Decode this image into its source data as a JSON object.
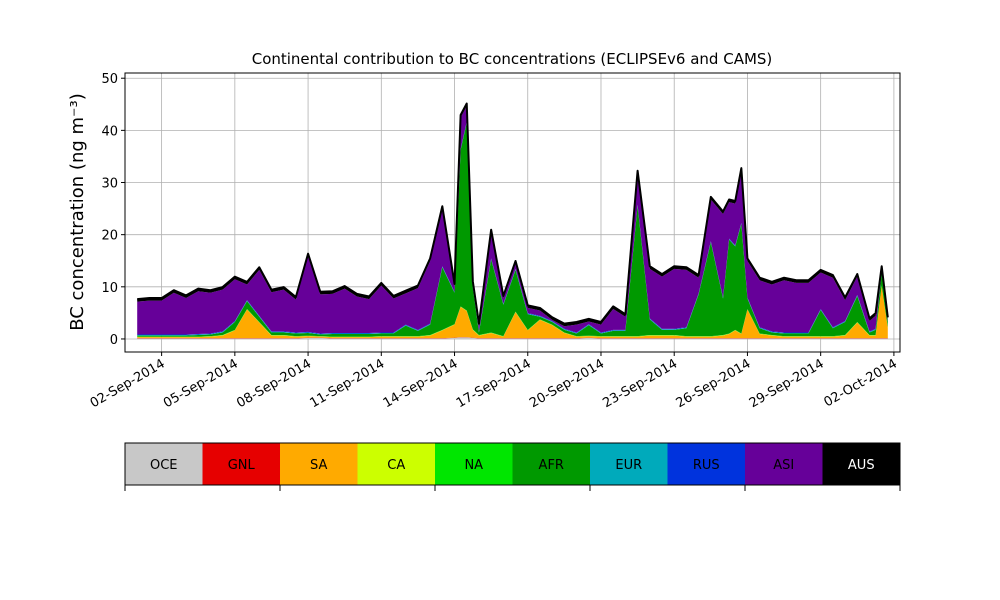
{
  "chart_data": {
    "type": "area",
    "stacked": true,
    "title": "Continental contribution to BC concentrations (ECLIPSEv6 and CAMS)",
    "ylabel": "BC concentration (ng m⁻³)",
    "ylim": [
      -2.5,
      51
    ],
    "yticks": [
      0,
      10,
      20,
      30,
      40,
      50
    ],
    "xlim": [
      "2014-08-31T12:00",
      "2014-10-02T06:00"
    ],
    "xticks": [
      "2014-09-02",
      "2014-09-05",
      "2014-09-08",
      "2014-09-11",
      "2014-09-14",
      "2014-09-17",
      "2014-09-20",
      "2014-09-23",
      "2014-09-26",
      "2014-09-29",
      "2014-10-02"
    ],
    "xticklabels": [
      "02-Sep-2014",
      "05-Sep-2014",
      "08-Sep-2014",
      "11-Sep-2014",
      "14-Sep-2014",
      "17-Sep-2014",
      "20-Sep-2014",
      "23-Sep-2014",
      "26-Sep-2014",
      "29-Sep-2014",
      "02-Oct-2014"
    ],
    "grid": true,
    "x": [
      "2014-09-01T00:00",
      "2014-09-01T12:00",
      "2014-09-02T00:00",
      "2014-09-02T12:00",
      "2014-09-03T00:00",
      "2014-09-03T12:00",
      "2014-09-04T00:00",
      "2014-09-04T12:00",
      "2014-09-05T00:00",
      "2014-09-05T12:00",
      "2014-09-06T00:00",
      "2014-09-06T12:00",
      "2014-09-07T00:00",
      "2014-09-07T12:00",
      "2014-09-08T00:00",
      "2014-09-08T12:00",
      "2014-09-09T00:00",
      "2014-09-09T12:00",
      "2014-09-10T00:00",
      "2014-09-10T12:00",
      "2014-09-11T00:00",
      "2014-09-11T12:00",
      "2014-09-12T00:00",
      "2014-09-12T12:00",
      "2014-09-13T00:00",
      "2014-09-13T12:00",
      "2014-09-14T00:00",
      "2014-09-14T06:00",
      "2014-09-14T12:00",
      "2014-09-14T18:00",
      "2014-09-15T00:00",
      "2014-09-15T12:00",
      "2014-09-16T00:00",
      "2014-09-16T12:00",
      "2014-09-17T00:00",
      "2014-09-17T12:00",
      "2014-09-18T00:00",
      "2014-09-18T12:00",
      "2014-09-19T00:00",
      "2014-09-19T12:00",
      "2014-09-20T00:00",
      "2014-09-20T12:00",
      "2014-09-21T00:00",
      "2014-09-21T12:00",
      "2014-09-22T00:00",
      "2014-09-22T12:00",
      "2014-09-23T00:00",
      "2014-09-23T12:00",
      "2014-09-24T00:00",
      "2014-09-24T12:00",
      "2014-09-25T00:00",
      "2014-09-25T06:00",
      "2014-09-25T12:00",
      "2014-09-25T18:00",
      "2014-09-26T00:00",
      "2014-09-26T12:00",
      "2014-09-27T00:00",
      "2014-09-27T12:00",
      "2014-09-28T00:00",
      "2014-09-28T12:00",
      "2014-09-29T00:00",
      "2014-09-29T12:00",
      "2014-09-30T00:00",
      "2014-09-30T12:00",
      "2014-10-01T00:00",
      "2014-10-01T06:00",
      "2014-10-01T12:00",
      "2014-10-01T18:00"
    ],
    "series": [
      {
        "name": "OCE",
        "color": "#c8c8c8",
        "values": [
          0.1,
          0.1,
          0.1,
          0.1,
          0.1,
          0.1,
          0.1,
          0.1,
          0.1,
          0.1,
          0.1,
          0.1,
          0.1,
          0.1,
          0.2,
          0.2,
          0.1,
          0.1,
          0.1,
          0.1,
          0.1,
          0.1,
          0.1,
          0.1,
          0.1,
          0.1,
          0.2,
          0.3,
          0.3,
          0.2,
          0.1,
          0.1,
          0.1,
          0.1,
          0.1,
          0.1,
          0.1,
          0.1,
          0.1,
          0.2,
          0.1,
          0.1,
          0.1,
          0.1,
          0.1,
          0.1,
          0.1,
          0.1,
          0.1,
          0.1,
          0.1,
          0.1,
          0.1,
          0.1,
          0.1,
          0.1,
          0.1,
          0.1,
          0.1,
          0.1,
          0.1,
          0.1,
          0.1,
          0.1,
          0.1,
          0.1,
          0.1,
          0.1
        ]
      },
      {
        "name": "GNL",
        "color": "#e60000",
        "values": [
          0.05,
          0.05,
          0.05,
          0.05,
          0.05,
          0.05,
          0.05,
          0.05,
          0.05,
          0.05,
          0.05,
          0.05,
          0.05,
          0.05,
          0.05,
          0.05,
          0.05,
          0.05,
          0.05,
          0.05,
          0.05,
          0.05,
          0.05,
          0.05,
          0.05,
          0.05,
          0.05,
          0.05,
          0.05,
          0.05,
          0.05,
          0.05,
          0.05,
          0.05,
          0.05,
          0.05,
          0.05,
          0.05,
          0.05,
          0.05,
          0.05,
          0.05,
          0.05,
          0.05,
          0.05,
          0.05,
          0.05,
          0.05,
          0.05,
          0.05,
          0.05,
          0.05,
          0.05,
          0.05,
          0.05,
          0.05,
          0.05,
          0.05,
          0.05,
          0.05,
          0.05,
          0.05,
          0.05,
          0.05,
          0.05,
          0.05,
          0.05,
          0.05
        ]
      },
      {
        "name": "SA",
        "color": "#ffaa00",
        "values": [
          0.2,
          0.2,
          0.2,
          0.2,
          0.2,
          0.2,
          0.3,
          0.5,
          1.5,
          5.5,
          3.0,
          0.5,
          0.5,
          0.3,
          0.3,
          0.2,
          0.2,
          0.2,
          0.2,
          0.2,
          0.3,
          0.3,
          0.3,
          0.3,
          0.5,
          1.5,
          2.5,
          5.8,
          5.0,
          1.5,
          0.5,
          1.0,
          0.3,
          5.0,
          1.5,
          3.5,
          2.5,
          1.0,
          0.3,
          0.3,
          0.3,
          0.3,
          0.3,
          0.3,
          0.5,
          0.5,
          0.5,
          0.3,
          0.3,
          0.3,
          0.5,
          0.8,
          1.5,
          0.8,
          5.5,
          0.8,
          0.5,
          0.3,
          0.3,
          0.3,
          0.3,
          0.3,
          0.5,
          3.0,
          0.5,
          0.5,
          10.0,
          2.0
        ]
      },
      {
        "name": "CA",
        "color": "#ccff00",
        "values": [
          0.05,
          0.05,
          0.05,
          0.05,
          0.05,
          0.05,
          0.05,
          0.05,
          0.05,
          0.05,
          0.05,
          0.05,
          0.05,
          0.05,
          0.05,
          0.05,
          0.05,
          0.05,
          0.05,
          0.05,
          0.05,
          0.05,
          0.05,
          0.05,
          0.05,
          0.05,
          0.05,
          0.05,
          0.05,
          0.05,
          0.05,
          0.05,
          0.05,
          0.05,
          0.05,
          0.05,
          0.05,
          0.05,
          0.05,
          0.05,
          0.05,
          0.05,
          0.05,
          0.05,
          0.05,
          0.05,
          0.05,
          0.05,
          0.05,
          0.05,
          0.05,
          0.05,
          0.05,
          0.05,
          0.05,
          0.05,
          0.05,
          0.05,
          0.05,
          0.05,
          0.05,
          0.05,
          0.05,
          0.05,
          0.05,
          0.05,
          0.05,
          0.05
        ]
      },
      {
        "name": "NA",
        "color": "#00e600",
        "values": [
          0.05,
          0.05,
          0.05,
          0.05,
          0.05,
          0.05,
          0.05,
          0.05,
          0.05,
          0.05,
          0.05,
          0.05,
          0.05,
          0.05,
          0.05,
          0.05,
          0.05,
          0.05,
          0.05,
          0.05,
          0.05,
          0.05,
          0.05,
          0.05,
          0.05,
          0.05,
          0.05,
          0.05,
          0.05,
          0.05,
          0.05,
          0.05,
          0.05,
          0.05,
          0.05,
          0.05,
          0.05,
          0.05,
          0.05,
          0.05,
          0.05,
          0.05,
          0.05,
          0.05,
          0.05,
          0.05,
          0.05,
          0.05,
          0.05,
          0.05,
          0.05,
          0.05,
          0.05,
          0.05,
          0.05,
          0.05,
          0.05,
          0.05,
          0.05,
          0.05,
          0.05,
          0.05,
          0.05,
          0.05,
          0.05,
          0.05,
          0.05,
          0.05
        ]
      },
      {
        "name": "AFR",
        "color": "#009900",
        "values": [
          0.2,
          0.2,
          0.2,
          0.2,
          0.2,
          0.3,
          0.3,
          0.5,
          1.5,
          1.5,
          1.0,
          0.5,
          0.5,
          0.5,
          0.5,
          0.3,
          0.5,
          0.5,
          0.5,
          0.5,
          0.5,
          0.5,
          2.0,
          1.0,
          2.0,
          12.0,
          6.0,
          30.0,
          36.0,
          8.0,
          0.5,
          14.0,
          6.0,
          8.0,
          3.0,
          0.5,
          0.5,
          0.5,
          0.5,
          2.0,
          0.5,
          1.0,
          1.0,
          25.0,
          3.0,
          1.0,
          1.0,
          1.5,
          8.0,
          18.0,
          7.0,
          18.0,
          16.0,
          21.0,
          2.0,
          1.0,
          0.5,
          0.5,
          0.5,
          0.5,
          5.0,
          1.5,
          2.5,
          5.0,
          0.5,
          1.0,
          2.5,
          1.0
        ]
      },
      {
        "name": "EUR",
        "color": "#00aabb",
        "values": [
          0.1,
          0.1,
          0.1,
          0.1,
          0.1,
          0.1,
          0.1,
          0.1,
          0.1,
          0.1,
          0.1,
          0.1,
          0.1,
          0.1,
          0.1,
          0.1,
          0.1,
          0.1,
          0.1,
          0.1,
          0.1,
          0.1,
          0.1,
          0.1,
          0.1,
          0.1,
          0.1,
          0.1,
          0.1,
          0.1,
          0.1,
          0.1,
          0.1,
          0.1,
          0.1,
          0.1,
          0.1,
          0.1,
          0.1,
          0.1,
          0.1,
          0.1,
          0.1,
          0.1,
          0.1,
          0.1,
          0.1,
          0.1,
          0.1,
          0.1,
          0.1,
          0.1,
          0.1,
          0.1,
          0.1,
          0.1,
          0.1,
          0.1,
          0.1,
          0.1,
          0.1,
          0.1,
          0.1,
          0.1,
          0.1,
          0.1,
          0.1,
          0.1
        ]
      },
      {
        "name": "RUS",
        "color": "#0033dd",
        "values": [
          0.1,
          0.1,
          0.1,
          0.1,
          0.1,
          0.1,
          0.1,
          0.1,
          0.1,
          0.1,
          0.1,
          0.1,
          0.1,
          0.1,
          0.1,
          0.1,
          0.1,
          0.1,
          0.1,
          0.1,
          0.1,
          0.1,
          0.1,
          0.1,
          0.1,
          0.1,
          0.1,
          0.1,
          0.1,
          0.1,
          0.1,
          0.1,
          0.1,
          0.1,
          0.1,
          0.1,
          0.1,
          0.1,
          0.1,
          0.1,
          0.1,
          0.1,
          0.1,
          0.1,
          0.1,
          0.1,
          0.1,
          0.1,
          0.1,
          0.1,
          0.1,
          0.1,
          0.1,
          0.1,
          0.1,
          0.1,
          0.1,
          0.1,
          0.1,
          0.1,
          0.1,
          0.1,
          0.1,
          0.1,
          0.1,
          0.1,
          0.1,
          0.1
        ]
      },
      {
        "name": "ASI",
        "color": "#660099",
        "values": [
          6.3,
          6.5,
          6.5,
          8.0,
          7.0,
          8.2,
          7.8,
          8.0,
          8.0,
          3.0,
          8.8,
          7.5,
          8.0,
          6.3,
          14.5,
          7.5,
          7.5,
          8.5,
          7.0,
          6.5,
          9.0,
          6.5,
          6.0,
          8.0,
          12.0,
          11.0,
          1.0,
          6.0,
          3.0,
          0.5,
          1.0,
          5.0,
          1.0,
          1.0,
          1.0,
          1.0,
          0.2,
          0.5,
          1.5,
          0.5,
          1.5,
          4.0,
          2.5,
          6.0,
          9.5,
          10.0,
          11.5,
          11.0,
          3.0,
          8.0,
          16.0,
          7.0,
          8.0,
          10.0,
          7.0,
          9.0,
          9.0,
          10.0,
          9.5,
          9.5,
          7.0,
          9.5,
          4.0,
          3.5,
          2.0,
          2.5,
          0.5,
          0.2
        ]
      },
      {
        "name": "AUS",
        "color": "#000000",
        "values": [
          0.5,
          0.5,
          0.5,
          0.5,
          0.5,
          0.5,
          0.5,
          0.5,
          0.5,
          0.5,
          0.5,
          0.5,
          0.5,
          0.5,
          0.5,
          0.5,
          0.5,
          0.5,
          0.5,
          0.5,
          0.5,
          0.5,
          0.5,
          0.5,
          0.5,
          0.5,
          0.5,
          0.5,
          0.5,
          0.5,
          0.5,
          0.5,
          0.5,
          0.5,
          0.5,
          0.5,
          0.5,
          0.5,
          0.5,
          0.5,
          0.5,
          0.5,
          0.5,
          0.5,
          0.5,
          0.5,
          0.5,
          0.5,
          0.5,
          0.5,
          0.5,
          0.5,
          0.5,
          0.5,
          0.5,
          0.5,
          0.5,
          0.5,
          0.5,
          0.5,
          0.5,
          0.5,
          0.5,
          0.5,
          0.5,
          0.5,
          0.5,
          0.5
        ]
      }
    ],
    "legend": {
      "placement": "below",
      "entries": [
        {
          "label": "OCE",
          "color": "#c8c8c8",
          "text_color": "#000000"
        },
        {
          "label": "GNL",
          "color": "#e60000",
          "text_color": "#000000"
        },
        {
          "label": "SA",
          "color": "#ffaa00",
          "text_color": "#000000"
        },
        {
          "label": "CA",
          "color": "#ccff00",
          "text_color": "#000000"
        },
        {
          "label": "NA",
          "color": "#00e600",
          "text_color": "#000000"
        },
        {
          "label": "AFR",
          "color": "#009900",
          "text_color": "#000000"
        },
        {
          "label": "EUR",
          "color": "#00aabb",
          "text_color": "#000000"
        },
        {
          "label": "RUS",
          "color": "#0033dd",
          "text_color": "#000000"
        },
        {
          "label": "ASI",
          "color": "#660099",
          "text_color": "#000000"
        },
        {
          "label": "AUS",
          "color": "#000000",
          "text_color": "#ffffff"
        }
      ]
    }
  }
}
